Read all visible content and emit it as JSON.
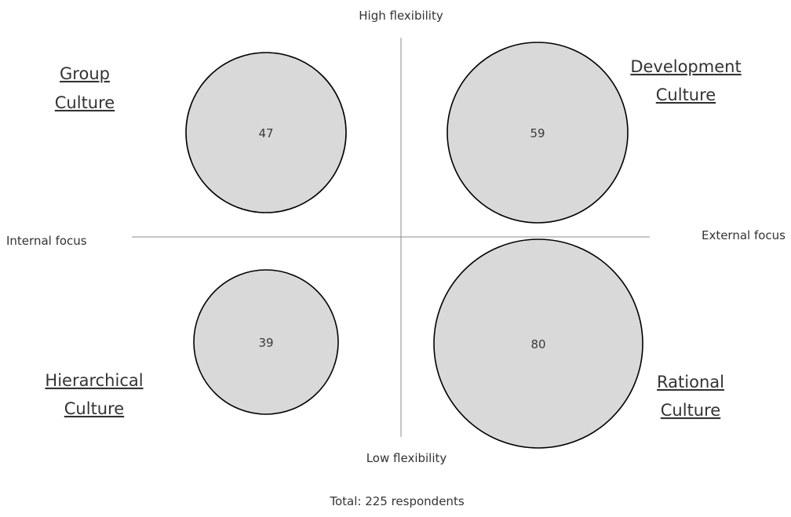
{
  "axes": {
    "top": "High flexibility",
    "bottom": "Low flexibility",
    "left": "Internal focus",
    "right": "External focus"
  },
  "quadrants": {
    "group": {
      "line1": "Group",
      "line2": "Culture",
      "value": "47"
    },
    "development": {
      "line1": "Development",
      "line2": "Culture",
      "value": "59"
    },
    "hierarchical": {
      "line1": "Hierarchical",
      "line2": "Culture",
      "value": "39"
    },
    "rational": {
      "line1": "Rational",
      "line2": "Culture",
      "value": "80"
    }
  },
  "total": "Total: 225 respondents",
  "colors": {
    "bubble_fill": "#d9d9d9",
    "bubble_stroke": "#000000",
    "axis": "#8c8c8c"
  }
}
